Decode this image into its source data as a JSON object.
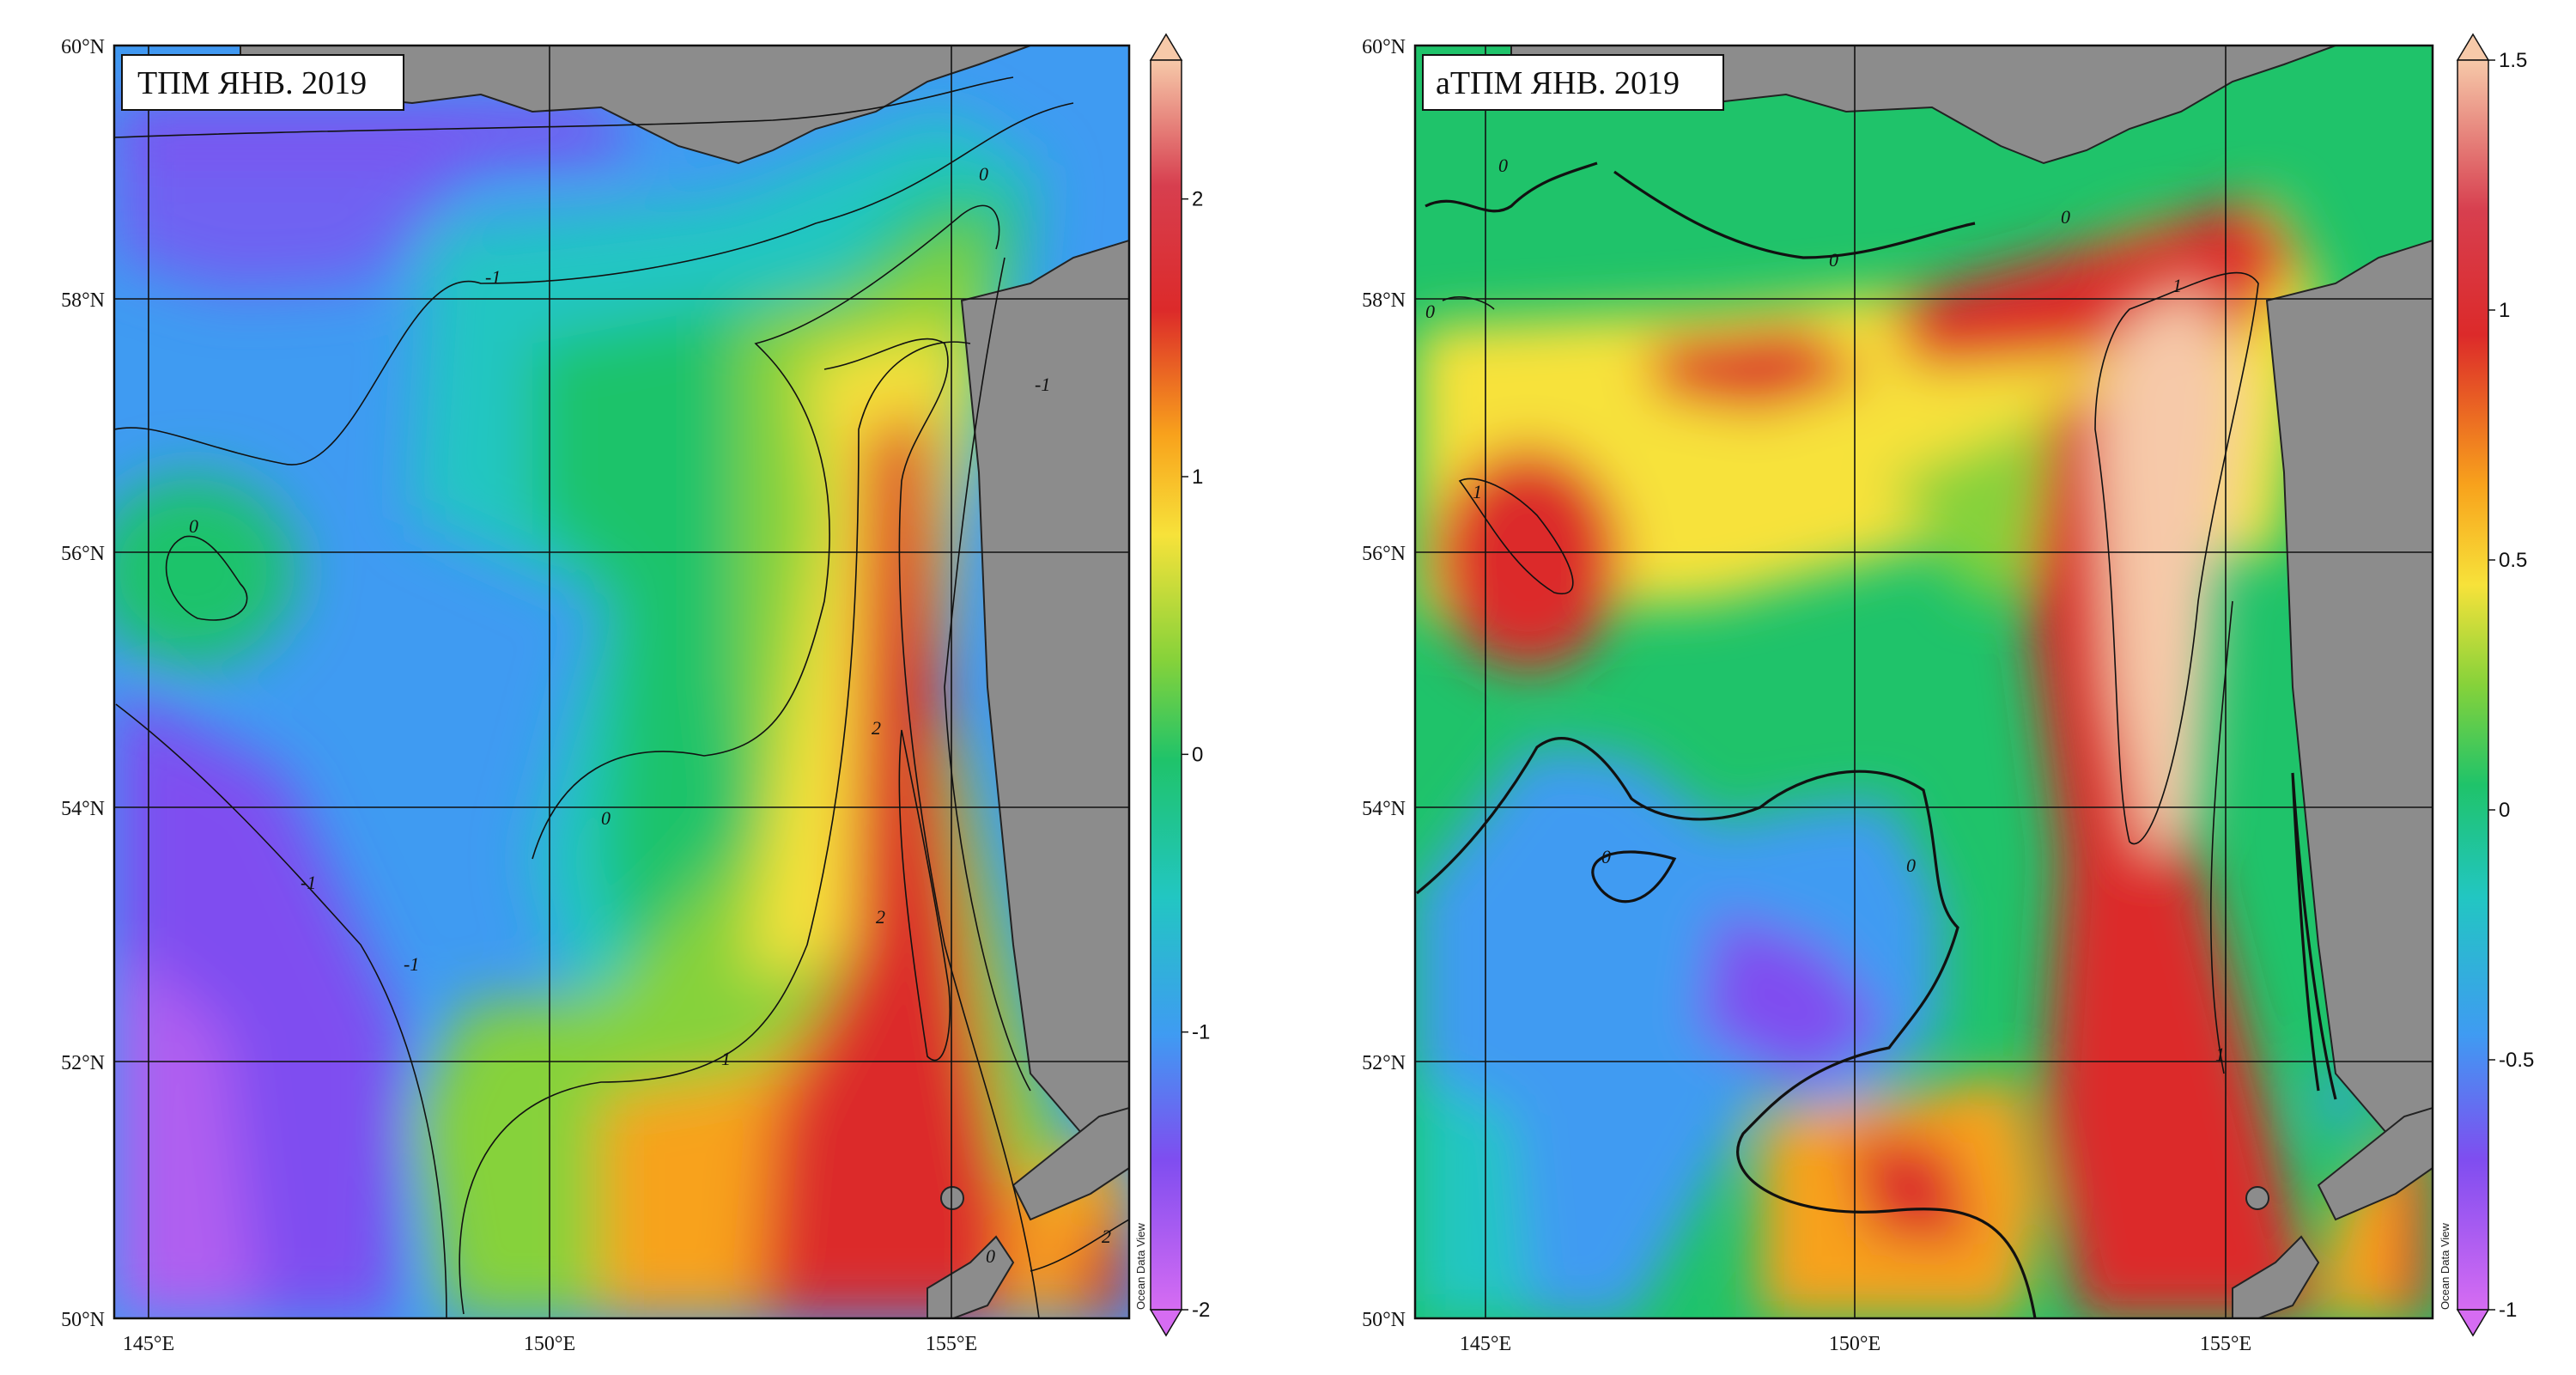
{
  "colors": {
    "land": "#8c8c8c",
    "palette": [
      "#d66cf2",
      "#7f4df0",
      "#3f9bf2",
      "#22c6c2",
      "#1fc36a",
      "#86d23a",
      "#f7e23a",
      "#f8a21c",
      "#dc2a2a",
      "#d73f4f",
      "#f6c9a9"
    ]
  },
  "axes": {
    "lat_labels": [
      "60°N",
      "58°N",
      "56°N",
      "54°N",
      "52°N",
      "50°N"
    ],
    "lon_labels": [
      "145°E",
      "150°E",
      "155°E"
    ]
  },
  "panels": [
    {
      "id": "left",
      "title": "ТПМ ЯНВ. 2019",
      "colorbar": {
        "min": -2,
        "max": 2.5,
        "tick_labels": [
          "2",
          "1",
          "0",
          "-1",
          "-2"
        ],
        "tick_values": [
          2,
          1,
          0,
          -1,
          -2
        ]
      },
      "contour_labels": [
        {
          "text": "-1"
        },
        {
          "text": "0"
        },
        {
          "text": "-1"
        },
        {
          "text": "0"
        },
        {
          "text": "-1"
        },
        {
          "text": "-1"
        },
        {
          "text": "2"
        },
        {
          "text": "2"
        },
        {
          "text": "0"
        },
        {
          "text": "1"
        },
        {
          "text": "2"
        },
        {
          "text": "0"
        }
      ],
      "watermark": "Ocean Data View"
    },
    {
      "id": "right",
      "title": "аТПМ ЯНВ. 2019",
      "colorbar": {
        "min": -1,
        "max": 1.5,
        "tick_labels": [
          "1.5",
          "1",
          "0.5",
          "0",
          "-0.5",
          "-1"
        ],
        "tick_values": [
          1.5,
          1,
          0.5,
          0,
          -0.5,
          -1
        ]
      },
      "contour_labels": [
        {
          "text": "0"
        },
        {
          "text": "0"
        },
        {
          "text": "0"
        },
        {
          "text": "1"
        },
        {
          "text": "1"
        },
        {
          "text": "0"
        },
        {
          "text": "0"
        },
        {
          "text": "1"
        },
        {
          "text": "0"
        }
      ],
      "watermark": "Ocean Data View"
    }
  ]
}
